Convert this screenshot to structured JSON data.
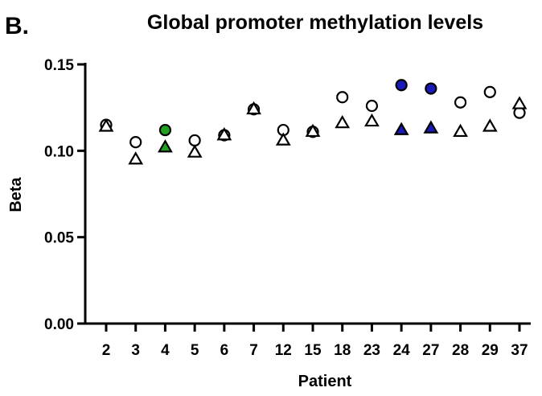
{
  "panel_label": "B.",
  "chart_data": {
    "type": "scatter",
    "title": "Global promoter methylation levels",
    "xlabel": "Patient",
    "ylabel": "Beta",
    "ylim": [
      0,
      0.15
    ],
    "yticks": [
      0.0,
      0.05,
      0.1,
      0.15
    ],
    "ytick_labels": [
      "0.00",
      "0.05",
      "0.10",
      "0.15"
    ],
    "categories": [
      "2",
      "3",
      "4",
      "5",
      "6",
      "7",
      "12",
      "15",
      "18",
      "23",
      "24",
      "27",
      "28",
      "29",
      "37"
    ],
    "grid": false,
    "legend": "none",
    "series": [
      {
        "marker": "circle",
        "values": [
          0.115,
          0.105,
          0.112,
          0.106,
          0.109,
          0.124,
          0.112,
          0.111,
          0.131,
          0.126,
          0.138,
          0.136,
          0.128,
          0.134,
          0.122
        ],
        "fills": [
          "#ffffff",
          "#ffffff",
          "#1fa01f",
          "#ffffff",
          "#ffffff",
          "#ffffff",
          "#ffffff",
          "#ffffff",
          "#ffffff",
          "#ffffff",
          "#1a1ab8",
          "#1a1ab8",
          "#ffffff",
          "#ffffff",
          "#ffffff"
        ]
      },
      {
        "marker": "triangle",
        "values": [
          0.114,
          0.095,
          0.102,
          0.099,
          0.109,
          0.124,
          0.106,
          0.111,
          0.116,
          0.117,
          0.112,
          0.113,
          0.111,
          0.114,
          0.127
        ],
        "fills": [
          "#ffffff",
          "#ffffff",
          "#1fa01f",
          "#ffffff",
          "#ffffff",
          "#ffffff",
          "#ffffff",
          "#ffffff",
          "#ffffff",
          "#ffffff",
          "#1a1ab8",
          "#1a1ab8",
          "#ffffff",
          "#ffffff",
          "#ffffff"
        ]
      }
    ]
  }
}
